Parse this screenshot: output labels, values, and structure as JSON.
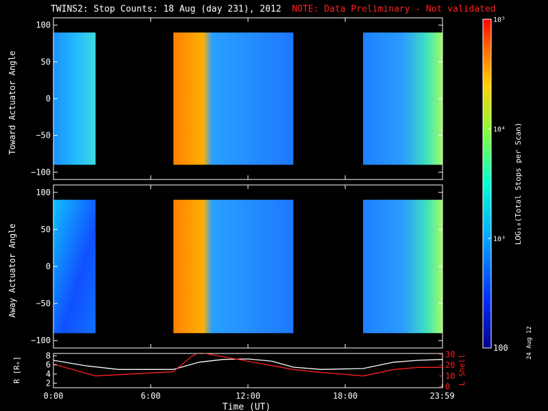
{
  "title": "TWINS2: Stop Counts: 18 Aug (day 231), 2012",
  "note": "NOTE: Data Preliminary - Not validated",
  "date_stamp": "24 Aug 12",
  "colors": {
    "background": "#000000",
    "axes": "#ffffff",
    "note": "#ff2020",
    "r_line": "#ffffff",
    "l_line": "#ff2020"
  },
  "chart_data": [
    {
      "type": "heatmap",
      "ylabel": "Toward Actuator Angle",
      "yticks": [
        "100",
        "50",
        "0",
        "−50",
        "−100"
      ],
      "ylim": [
        -110,
        110
      ],
      "data_range": [
        -90,
        90
      ],
      "xlim": [
        0,
        24
      ],
      "segments": [
        {
          "start": 0.0,
          "end": 2.6,
          "level": "high-low"
        },
        {
          "start": 7.4,
          "end": 14.8,
          "level": "saturated-then-mid"
        },
        {
          "start": 19.1,
          "end": 24.0,
          "level": "mixed"
        }
      ]
    },
    {
      "type": "heatmap",
      "ylabel": "Away Actuator Angle",
      "yticks": [
        "100",
        "50",
        "0",
        "−50",
        "−100"
      ],
      "ylim": [
        -110,
        110
      ],
      "data_range": [
        -90,
        90
      ],
      "xlim": [
        0,
        24
      ],
      "segments": [
        {
          "start": 0.0,
          "end": 2.6,
          "level": "high-low"
        },
        {
          "start": 7.4,
          "end": 14.8,
          "level": "saturated-then-low"
        },
        {
          "start": 19.1,
          "end": 24.0,
          "level": "mixed"
        }
      ]
    },
    {
      "type": "line",
      "ylabel_left": "R [Rₑ]",
      "ylabel_right": "L Shell",
      "yticks_left": [
        "8",
        "6",
        "4",
        "2"
      ],
      "yticks_right": [
        "30",
        "20",
        "10",
        "0"
      ],
      "xlabel": "Time (UT)",
      "xticks": [
        "0:00",
        "6:00",
        "12:00",
        "18:00",
        "23:59"
      ],
      "xlim": [
        0,
        24
      ],
      "series": [
        {
          "axis": "left",
          "x": [
            0,
            2,
            4,
            7.4,
            9,
            10.5,
            12,
            13.5,
            14.8,
            16.5,
            19.1,
            21,
            22.5,
            24
          ],
          "y": [
            7.0,
            5.8,
            5.0,
            5.0,
            6.6,
            7.2,
            7.3,
            6.8,
            5.5,
            5.0,
            5.2,
            6.6,
            7.0,
            7.2
          ]
        },
        {
          "axis": "right",
          "x": [
            0,
            2.6,
            5,
            7.4,
            8.5,
            9,
            14.8,
            16,
            19.1,
            21,
            22.5,
            24
          ],
          "y": [
            21,
            10,
            12,
            14,
            28,
            32,
            16,
            14,
            10,
            16,
            18,
            18
          ]
        }
      ]
    },
    {
      "type": "heatmap",
      "title": "colorbar",
      "ylabel": "LOG₁₀(Total Stops per Scan)",
      "scale": "log",
      "ticks": [
        "10⁵",
        "10⁴",
        "10³",
        "100"
      ],
      "range": [
        100,
        100000
      ]
    }
  ]
}
